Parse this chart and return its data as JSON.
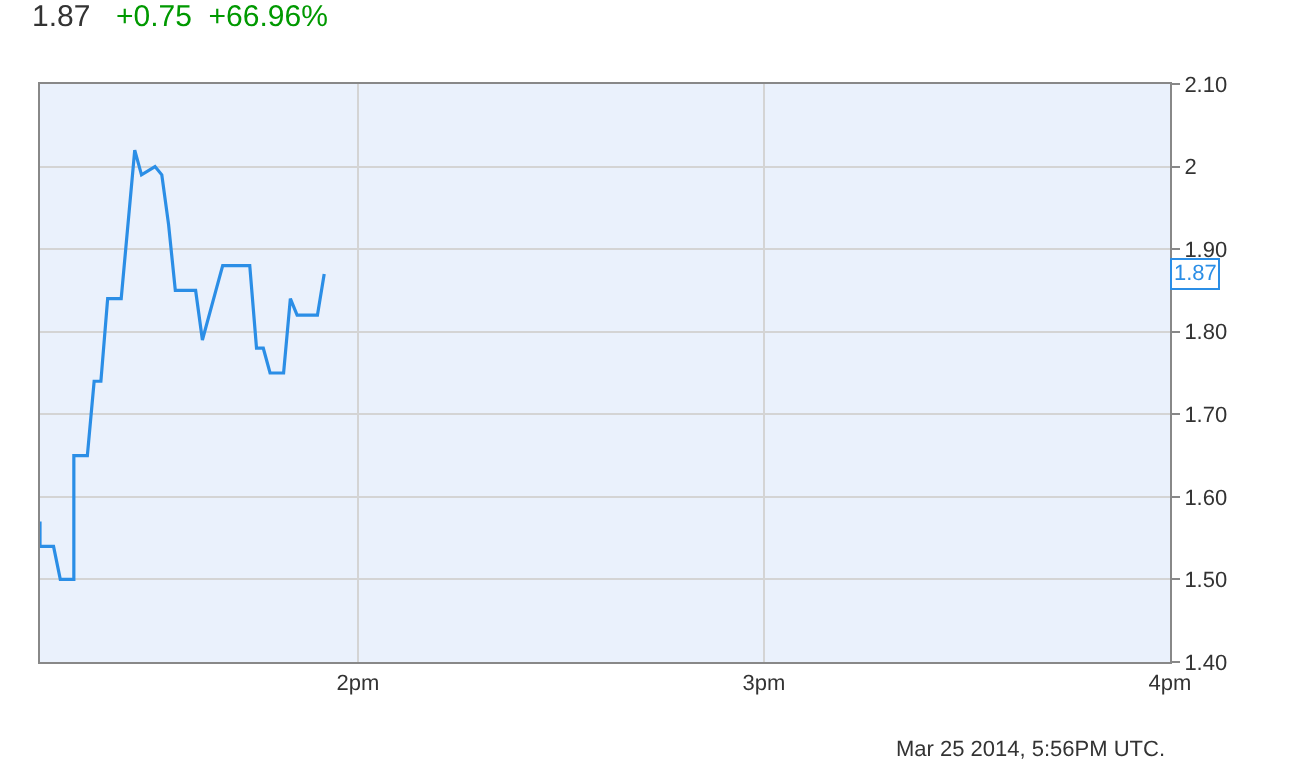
{
  "chart_data": {
    "type": "line",
    "title": "1.87",
    "subtitle": "+0.75  +66.96%",
    "x": [
      "2014-03-25T13:13",
      "2014-03-25T13:13",
      "2014-03-25T13:15",
      "2014-03-25T13:16",
      "2014-03-25T13:18",
      "2014-03-25T13:18",
      "2014-03-25T13:20",
      "2014-03-25T13:21",
      "2014-03-25T13:22",
      "2014-03-25T13:23",
      "2014-03-25T13:25",
      "2014-03-25T13:27",
      "2014-03-25T13:28",
      "2014-03-25T13:30",
      "2014-03-25T13:31",
      "2014-03-25T13:32",
      "2014-03-25T13:33",
      "2014-03-25T13:36",
      "2014-03-25T13:37",
      "2014-03-25T13:39",
      "2014-03-25T13:40",
      "2014-03-25T13:44",
      "2014-03-25T13:45",
      "2014-03-25T13:46",
      "2014-03-25T13:47",
      "2014-03-25T13:49",
      "2014-03-25T13:50",
      "2014-03-25T13:51",
      "2014-03-25T13:54",
      "2014-03-25T13:55"
    ],
    "series": [
      {
        "color": "#2b8ee6",
        "values": [
          1.57,
          1.54,
          1.54,
          1.5,
          1.5,
          1.65,
          1.65,
          1.74,
          1.74,
          1.84,
          1.84,
          2.02,
          1.99,
          2.0,
          1.99,
          1.93,
          1.85,
          1.85,
          1.79,
          1.85,
          1.88,
          1.88,
          1.78,
          1.78,
          1.75,
          1.75,
          1.84,
          1.82,
          1.82,
          1.87
        ]
      }
    ],
    "xlim": [
      "2014-03-25T13:13",
      "2014-03-25T16:00"
    ],
    "xticks": [
      {
        "value": "2014-03-25T14:00",
        "label": "2pm"
      },
      {
        "value": "2014-03-25T15:00",
        "label": "3pm"
      },
      {
        "value": "2014-03-25T16:00",
        "label": "4pm"
      }
    ],
    "ylim": [
      1.4,
      2.1
    ],
    "yticks": [
      {
        "value": 1.4,
        "label": "1.40"
      },
      {
        "value": 1.5,
        "label": "1.50"
      },
      {
        "value": 1.6,
        "label": "1.60"
      },
      {
        "value": 1.7,
        "label": "1.70"
      },
      {
        "value": 1.8,
        "label": "1.80"
      },
      {
        "value": 1.9,
        "label": "1.90"
      },
      2,
      {
        "value": 2.1,
        "label": "2.10"
      }
    ],
    "grid": true,
    "legend": false,
    "marker": "none",
    "line_style": "solid",
    "annotations": [
      {
        "text": "1.87",
        "y": 1.87
      },
      "Mar 25 2014, 5:56PM UTC."
    ]
  }
}
